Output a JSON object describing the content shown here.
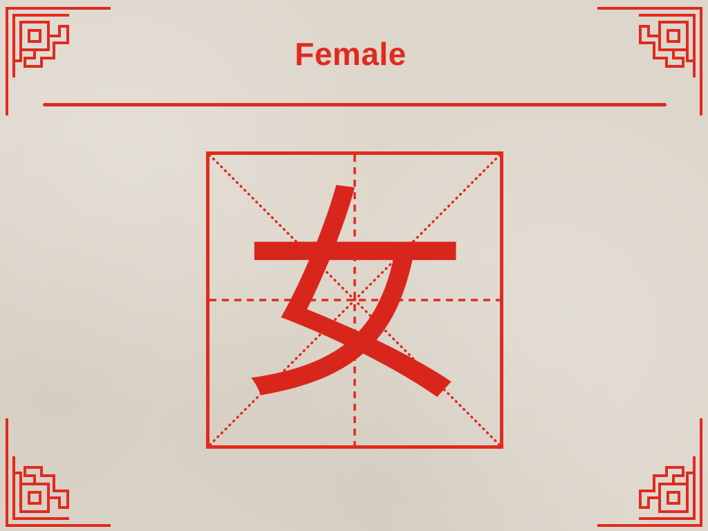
{
  "title": "Female",
  "character": "女",
  "colors": {
    "accent": "#e02a1f",
    "character": "#d9261d",
    "paper": "#ddd6cb"
  },
  "decorations": {
    "corner_icon": "chinese-knot-corner-icon",
    "grid_icon": "practice-grid-icon"
  }
}
